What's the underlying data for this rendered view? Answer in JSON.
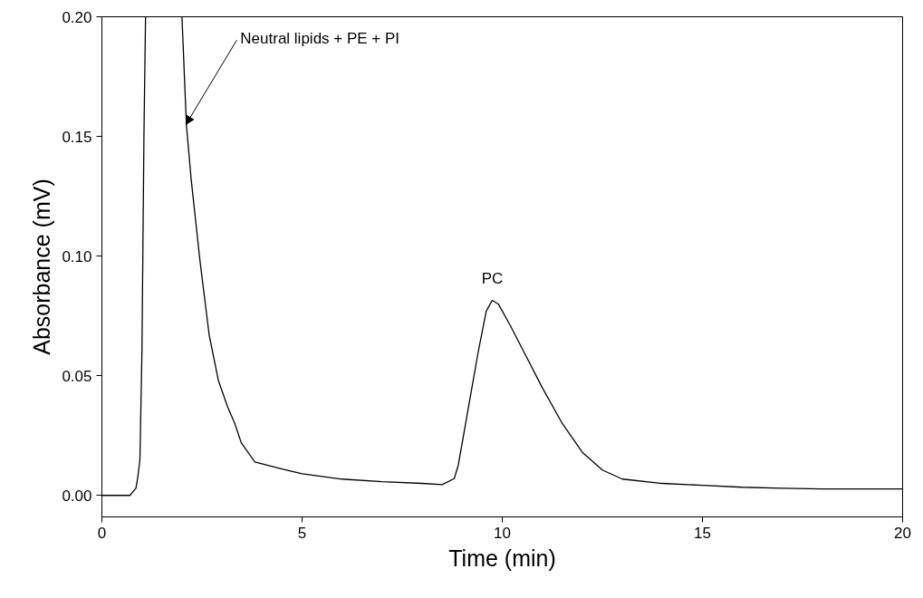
{
  "chart_data": {
    "type": "line",
    "xlabel": "Time (min)",
    "ylabel": "Absorbance (mV)",
    "x": [
      0,
      0.7,
      0.8,
      0.85,
      0.9,
      0.95,
      1.0,
      1.05,
      1.09,
      1.5,
      2.0,
      2.11,
      2.23,
      2.45,
      2.68,
      2.91,
      3.14,
      3.32,
      3.48,
      3.82,
      4.5,
      5,
      6,
      7,
      8,
      8.5,
      8.8,
      8.9,
      9.0,
      9.2,
      9.4,
      9.6,
      9.75,
      9.9,
      10.2,
      10.6,
      11,
      11.5,
      12,
      12.5,
      13,
      14,
      15,
      16,
      17,
      18,
      20
    ],
    "series": [
      {
        "color": "#000000",
        "values": [
          0,
          0,
          0.002,
          0.003,
          0.008,
          0.015,
          0.06,
          0.15,
          0.2,
          null,
          0.2,
          0.155,
          0.132,
          0.098,
          0.067,
          0.048,
          0.037,
          0.03,
          0.022,
          0.014,
          0.011,
          0.009,
          0.0068,
          0.0057,
          0.005,
          0.0045,
          0.007,
          0.0125,
          0.022,
          0.041,
          0.06,
          0.077,
          0.0815,
          0.08,
          0.071,
          0.058,
          0.045,
          0.03,
          0.018,
          0.0106,
          0.0068,
          0.005,
          0.0042,
          0.0034,
          0.003,
          0.0027,
          0.0027
        ]
      }
    ],
    "xlim": [
      0,
      20
    ],
    "ylim": [
      -0.009,
      0.2
    ],
    "xticks": [
      0,
      5,
      10,
      15,
      20
    ],
    "yticks": [
      {
        "value": 0,
        "label": "0.00"
      },
      {
        "value": 0.05,
        "label": "0.05"
      },
      {
        "value": 0.1,
        "label": "0.10"
      },
      {
        "value": 0.15,
        "label": "0.15"
      },
      {
        "value": 0.2,
        "label": "0.20"
      }
    ],
    "annotations": [
      {
        "text": "Neutral lipids + PE + PI",
        "x": 2.1,
        "y": 0.155
      },
      {
        "text": "PC",
        "x": 9.75,
        "y": 0.0815
      }
    ],
    "grid": false,
    "line_style": "solid"
  }
}
